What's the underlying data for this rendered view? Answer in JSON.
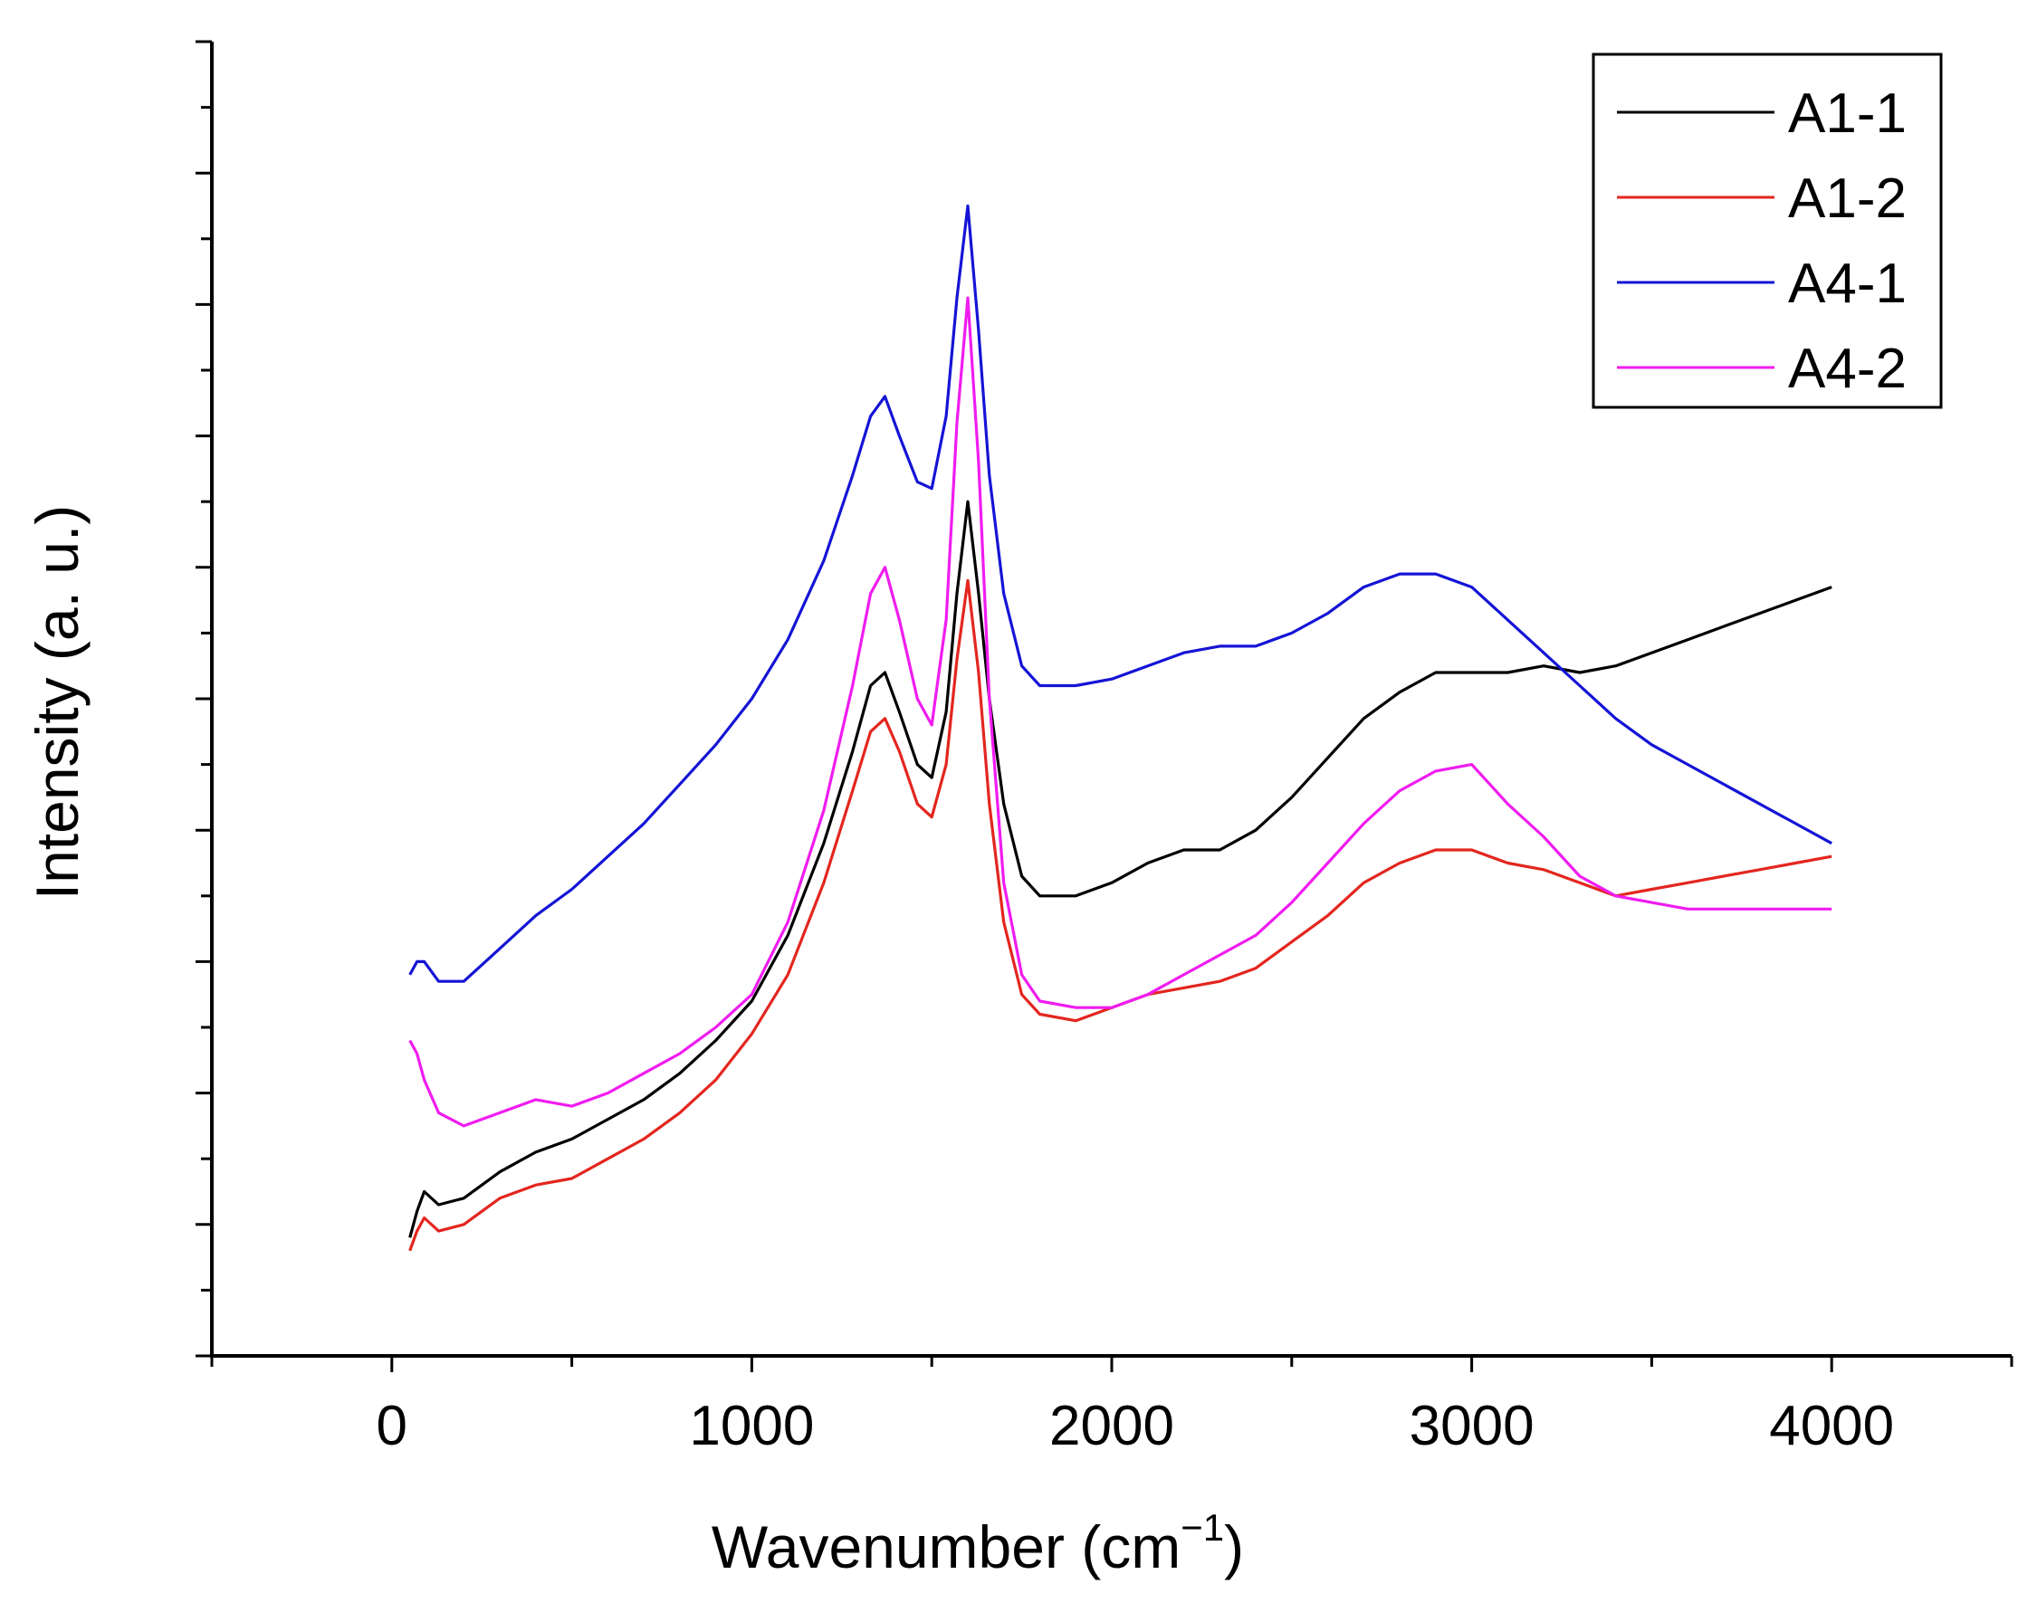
{
  "chart_data": {
    "type": "line",
    "title": "",
    "xlabel": "Wavenumber (cm",
    "xlabel_sup": "−1",
    "xlabel_close": ")",
    "ylabel": "Intensity (a. u.)",
    "xlim": [
      -500,
      4500
    ],
    "ylim": [
      0,
      10
    ],
    "x_ticks": [
      0,
      1000,
      2000,
      3000,
      4000
    ],
    "x_tick_labels": [
      "0",
      "1000",
      "2000",
      "3000",
      "4000"
    ],
    "y_ticks_unlabeled": true,
    "grid": false,
    "legend_position": "top-right",
    "series": [
      {
        "name": "A1-1",
        "color": "#000000",
        "x": [
          50,
          70,
          90,
          130,
          200,
          300,
          400,
          500,
          600,
          700,
          800,
          900,
          1000,
          1100,
          1200,
          1280,
          1330,
          1370,
          1410,
          1460,
          1500,
          1540,
          1570,
          1600,
          1630,
          1660,
          1700,
          1750,
          1800,
          1900,
          2000,
          2100,
          2200,
          2300,
          2400,
          2500,
          2600,
          2700,
          2800,
          2900,
          3000,
          3100,
          3200,
          3300,
          3400,
          3500,
          3600,
          3700,
          3800,
          3900,
          4000
        ],
        "y": [
          0.9,
          1.1,
          1.25,
          1.15,
          1.2,
          1.4,
          1.55,
          1.65,
          1.8,
          1.95,
          2.15,
          2.4,
          2.7,
          3.2,
          3.9,
          4.6,
          5.1,
          5.2,
          4.9,
          4.5,
          4.4,
          4.9,
          5.8,
          6.5,
          5.8,
          5.0,
          4.2,
          3.65,
          3.5,
          3.5,
          3.6,
          3.75,
          3.85,
          3.85,
          4.0,
          4.25,
          4.55,
          4.85,
          5.05,
          5.2,
          5.2,
          5.2,
          5.25,
          5.2,
          5.25,
          5.35,
          5.45,
          5.55,
          5.65,
          5.75,
          5.85
        ]
      },
      {
        "name": "A1-2",
        "color": "#e3261f",
        "x": [
          50,
          70,
          90,
          130,
          200,
          300,
          400,
          500,
          600,
          700,
          800,
          900,
          1000,
          1100,
          1200,
          1280,
          1330,
          1370,
          1410,
          1460,
          1500,
          1540,
          1570,
          1600,
          1630,
          1660,
          1700,
          1750,
          1800,
          1900,
          2000,
          2100,
          2200,
          2300,
          2400,
          2500,
          2600,
          2700,
          2800,
          2900,
          3000,
          3100,
          3200,
          3300,
          3400,
          3500,
          3600,
          3700,
          3800,
          3900,
          4000
        ],
        "y": [
          0.8,
          0.95,
          1.05,
          0.95,
          1.0,
          1.2,
          1.3,
          1.35,
          1.5,
          1.65,
          1.85,
          2.1,
          2.45,
          2.9,
          3.6,
          4.3,
          4.75,
          4.85,
          4.6,
          4.2,
          4.1,
          4.5,
          5.3,
          5.9,
          5.2,
          4.2,
          3.3,
          2.75,
          2.6,
          2.55,
          2.65,
          2.75,
          2.8,
          2.85,
          2.95,
          3.15,
          3.35,
          3.6,
          3.75,
          3.85,
          3.85,
          3.75,
          3.7,
          3.6,
          3.5,
          3.55,
          3.6,
          3.65,
          3.7,
          3.75,
          3.8
        ]
      },
      {
        "name": "A4-1",
        "color": "#1414d6",
        "x": [
          50,
          70,
          90,
          130,
          200,
          300,
          400,
          500,
          600,
          700,
          800,
          900,
          1000,
          1100,
          1200,
          1280,
          1330,
          1370,
          1410,
          1460,
          1500,
          1540,
          1570,
          1600,
          1630,
          1660,
          1700,
          1750,
          1800,
          1900,
          2000,
          2100,
          2200,
          2300,
          2400,
          2500,
          2600,
          2700,
          2800,
          2900,
          3000,
          3100,
          3200,
          3300,
          3400,
          3500,
          3600,
          3700,
          3800,
          3900,
          4000
        ],
        "y": [
          2.9,
          3.0,
          3.0,
          2.85,
          2.85,
          3.1,
          3.35,
          3.55,
          3.8,
          4.05,
          4.35,
          4.65,
          5.0,
          5.45,
          6.05,
          6.7,
          7.15,
          7.3,
          7.0,
          6.65,
          6.6,
          7.15,
          8.05,
          8.75,
          7.8,
          6.7,
          5.8,
          5.25,
          5.1,
          5.1,
          5.15,
          5.25,
          5.35,
          5.4,
          5.4,
          5.5,
          5.65,
          5.85,
          5.95,
          5.95,
          5.85,
          5.6,
          5.35,
          5.1,
          4.85,
          4.65,
          4.5,
          4.35,
          4.2,
          4.05,
          3.9
        ]
      },
      {
        "name": "A4-2",
        "color": "#f01cf0",
        "x": [
          50,
          70,
          90,
          130,
          200,
          300,
          400,
          500,
          600,
          700,
          800,
          900,
          1000,
          1100,
          1200,
          1280,
          1330,
          1370,
          1410,
          1460,
          1500,
          1540,
          1570,
          1600,
          1630,
          1660,
          1700,
          1750,
          1800,
          1900,
          2000,
          2100,
          2200,
          2300,
          2400,
          2500,
          2600,
          2700,
          2800,
          2900,
          3000,
          3100,
          3200,
          3300,
          3400,
          3500,
          3600,
          3700,
          3800,
          3900,
          4000
        ],
        "y": [
          2.4,
          2.3,
          2.1,
          1.85,
          1.75,
          1.85,
          1.95,
          1.9,
          2.0,
          2.15,
          2.3,
          2.5,
          2.75,
          3.3,
          4.15,
          5.1,
          5.8,
          6.0,
          5.6,
          5.0,
          4.8,
          5.6,
          7.1,
          8.05,
          6.8,
          5.0,
          3.6,
          2.9,
          2.7,
          2.65,
          2.65,
          2.75,
          2.9,
          3.05,
          3.2,
          3.45,
          3.75,
          4.05,
          4.3,
          4.45,
          4.5,
          4.2,
          3.95,
          3.65,
          3.5,
          3.45,
          3.4,
          3.4,
          3.4,
          3.4,
          3.4
        ]
      }
    ]
  }
}
